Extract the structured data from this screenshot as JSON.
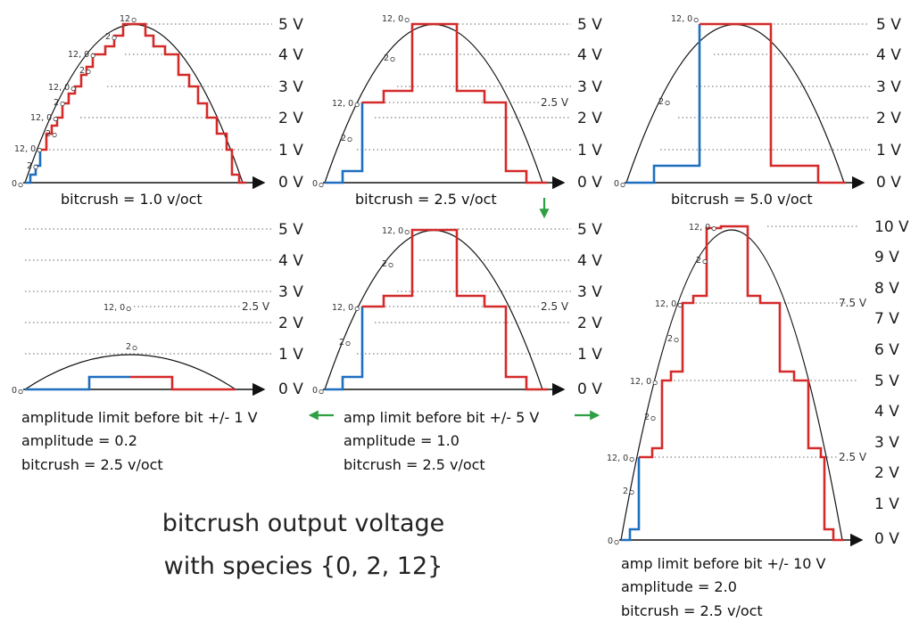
{
  "title": [
    "bitcrush output voltage",
    "with species {0, 2, 12}"
  ],
  "colors": {
    "rising": "#1f6fc0",
    "falling": "#d42a2a",
    "arrow": "#2ea043"
  },
  "panels": [
    {
      "id": "p1",
      "captions": [
        "bitcrush = 1.0 v/oct"
      ],
      "volt_labels": [
        "5 V",
        "4 V",
        "3 V",
        "2 V",
        "1 V",
        "0 V"
      ],
      "extra_label": "",
      "note_labels": [
        "12",
        "2",
        "12, 0",
        "2",
        "12, 0",
        "2",
        "12, 0",
        "2",
        "12, 0",
        "2",
        "0"
      ],
      "chart_data": {
        "type": "line",
        "amplitude": 1.0,
        "bitcrush_voct": 1.0,
        "levels": [
          "0",
          "2",
          "12"
        ],
        "ylim": [
          0,
          5
        ]
      }
    },
    {
      "id": "p2",
      "captions": [
        "bitcrush = 2.5 v/oct"
      ],
      "volt_labels": [
        "5 V",
        "4 V",
        "3 V",
        "2 V",
        "1 V",
        "0 V"
      ],
      "extra_label": "2.5 V",
      "note_labels": [
        "12, 0",
        "2",
        "12, 0",
        "2",
        "0"
      ],
      "chart_data": {
        "type": "line",
        "amplitude": 1.0,
        "bitcrush_voct": 2.5,
        "levels": [
          "0",
          "2",
          "12"
        ],
        "ylim": [
          0,
          5
        ]
      }
    },
    {
      "id": "p3",
      "captions": [
        "bitcrush = 5.0 v/oct"
      ],
      "volt_labels": [
        "5 V",
        "4 V",
        "3 V",
        "2 V",
        "1 V",
        "0 V"
      ],
      "extra_label": "",
      "note_labels": [
        "12, 0",
        "2",
        "0"
      ],
      "chart_data": {
        "type": "line",
        "amplitude": 1.0,
        "bitcrush_voct": 5.0,
        "levels": [
          "0",
          "2",
          "12"
        ],
        "ylim": [
          0,
          5
        ]
      }
    },
    {
      "id": "p4",
      "captions": [
        "amplitude limit before bit +/- 1 V",
        "amplitude = 0.2",
        "bitcrush = 2.5 v/oct"
      ],
      "volt_labels": [
        "5 V",
        "4 V",
        "3 V",
        "2 V",
        "1 V",
        "0 V"
      ],
      "extra_label": "2.5 V",
      "note_labels": [
        "12, 0",
        "2",
        "0"
      ],
      "chart_data": {
        "type": "line",
        "amplitude": 0.2,
        "bitcrush_voct": 2.5,
        "limit": "+/- 1 V",
        "levels": [
          "0",
          "2",
          "12"
        ],
        "ylim": [
          0,
          5
        ]
      }
    },
    {
      "id": "p5",
      "captions": [
        "amp limit before bit +/- 5 V",
        "amplitude = 1.0",
        "bitcrush = 2.5 v/oct"
      ],
      "volt_labels": [
        "5 V",
        "4 V",
        "3 V",
        "2 V",
        "1 V",
        "0 V"
      ],
      "extra_label": "2.5 V",
      "note_labels": [
        "12, 0",
        "2",
        "12, 0",
        "2",
        "0"
      ],
      "chart_data": {
        "type": "line",
        "amplitude": 1.0,
        "bitcrush_voct": 2.5,
        "limit": "+/- 5 V",
        "levels": [
          "0",
          "2",
          "12"
        ],
        "ylim": [
          0,
          5
        ]
      }
    },
    {
      "id": "p6",
      "captions": [
        "amp limit before bit +/- 10 V",
        "amplitude = 2.0",
        "bitcrush = 2.5 v/oct"
      ],
      "volt_labels": [
        "10 V",
        "9 V",
        "8 V",
        "7 V",
        "6 V",
        "5 V",
        "4 V",
        "3 V",
        "2 V",
        "1 V",
        "0 V"
      ],
      "extra_label": "7.5 V",
      "extra_label_2": "2.5 V",
      "note_labels": [
        "12, 0",
        "2",
        "12, 0",
        "2",
        "12, 0",
        "2",
        "12, 0",
        "2",
        "0"
      ],
      "chart_data": {
        "type": "line",
        "amplitude": 2.0,
        "bitcrush_voct": 2.5,
        "limit": "+/- 10 V",
        "levels": [
          "0",
          "2",
          "12"
        ],
        "ylim": [
          0,
          10
        ]
      }
    }
  ]
}
